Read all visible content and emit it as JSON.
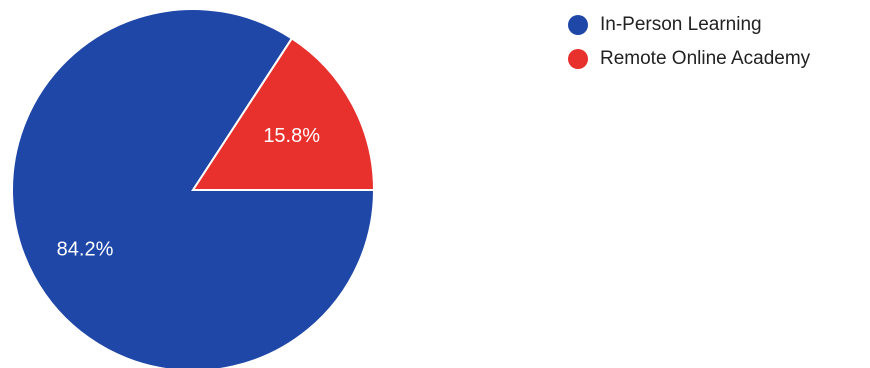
{
  "chart_data": {
    "type": "pie",
    "legend_position": "top-right",
    "series": [
      {
        "name": "In-Person Learning",
        "value": 84.2,
        "label": "84.2%",
        "color": "#1f47a8"
      },
      {
        "name": "Remote Online Academy",
        "value": 15.8,
        "label": "15.8%",
        "color": "#e8302d"
      }
    ]
  }
}
